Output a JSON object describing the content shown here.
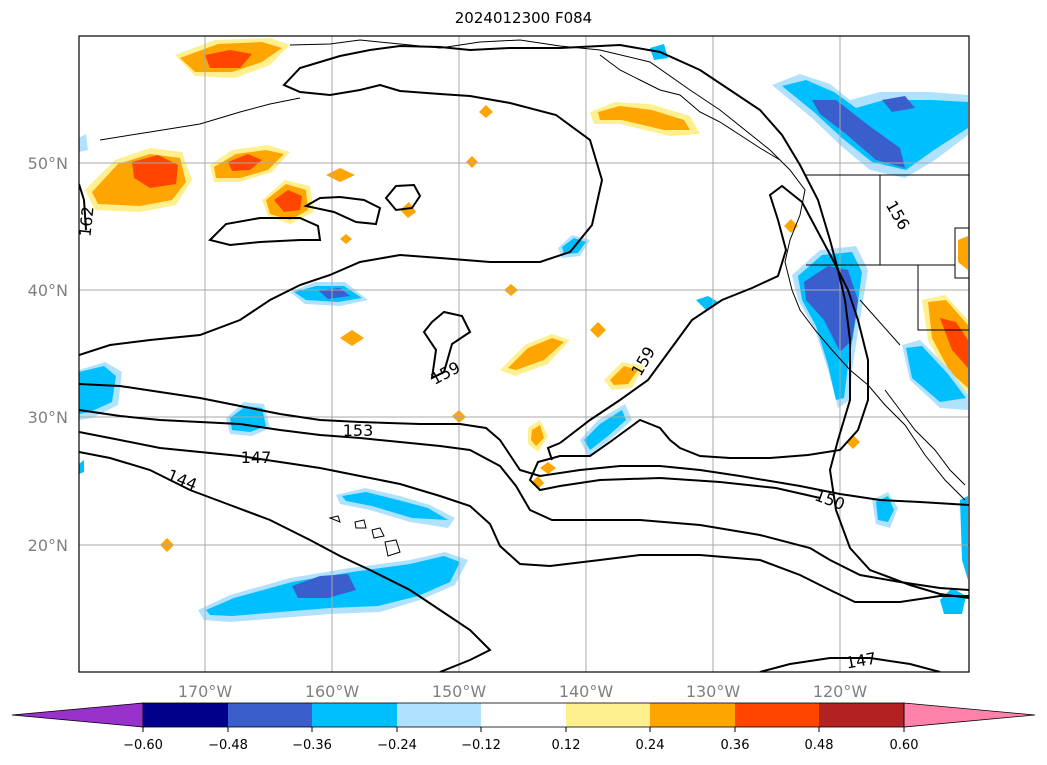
{
  "title": "2024012300 F084",
  "map": {
    "lat_labels": [
      "50°N",
      "40°N",
      "30°N",
      "20°N"
    ],
    "lon_labels": [
      "170°W",
      "160°W",
      "150°W",
      "140°W",
      "130°W",
      "120°W"
    ],
    "contour_labels": [
      "162",
      "159",
      "159",
      "156",
      "153",
      "150",
      "147",
      "147",
      "144"
    ]
  },
  "colorbar": {
    "colors": [
      "#9932cc",
      "#00008b",
      "#3a5fcd",
      "#00bfff",
      "#b0e2ff",
      "#ffffff",
      "#fff08f",
      "#ffa500",
      "#ff4500",
      "#b22222",
      "#ff82ab"
    ],
    "tick_labels": [
      "−0.60",
      "−0.48",
      "−0.36",
      "−0.24",
      "−0.12",
      "0.12",
      "0.24",
      "0.36",
      "0.48",
      "0.60"
    ]
  }
}
